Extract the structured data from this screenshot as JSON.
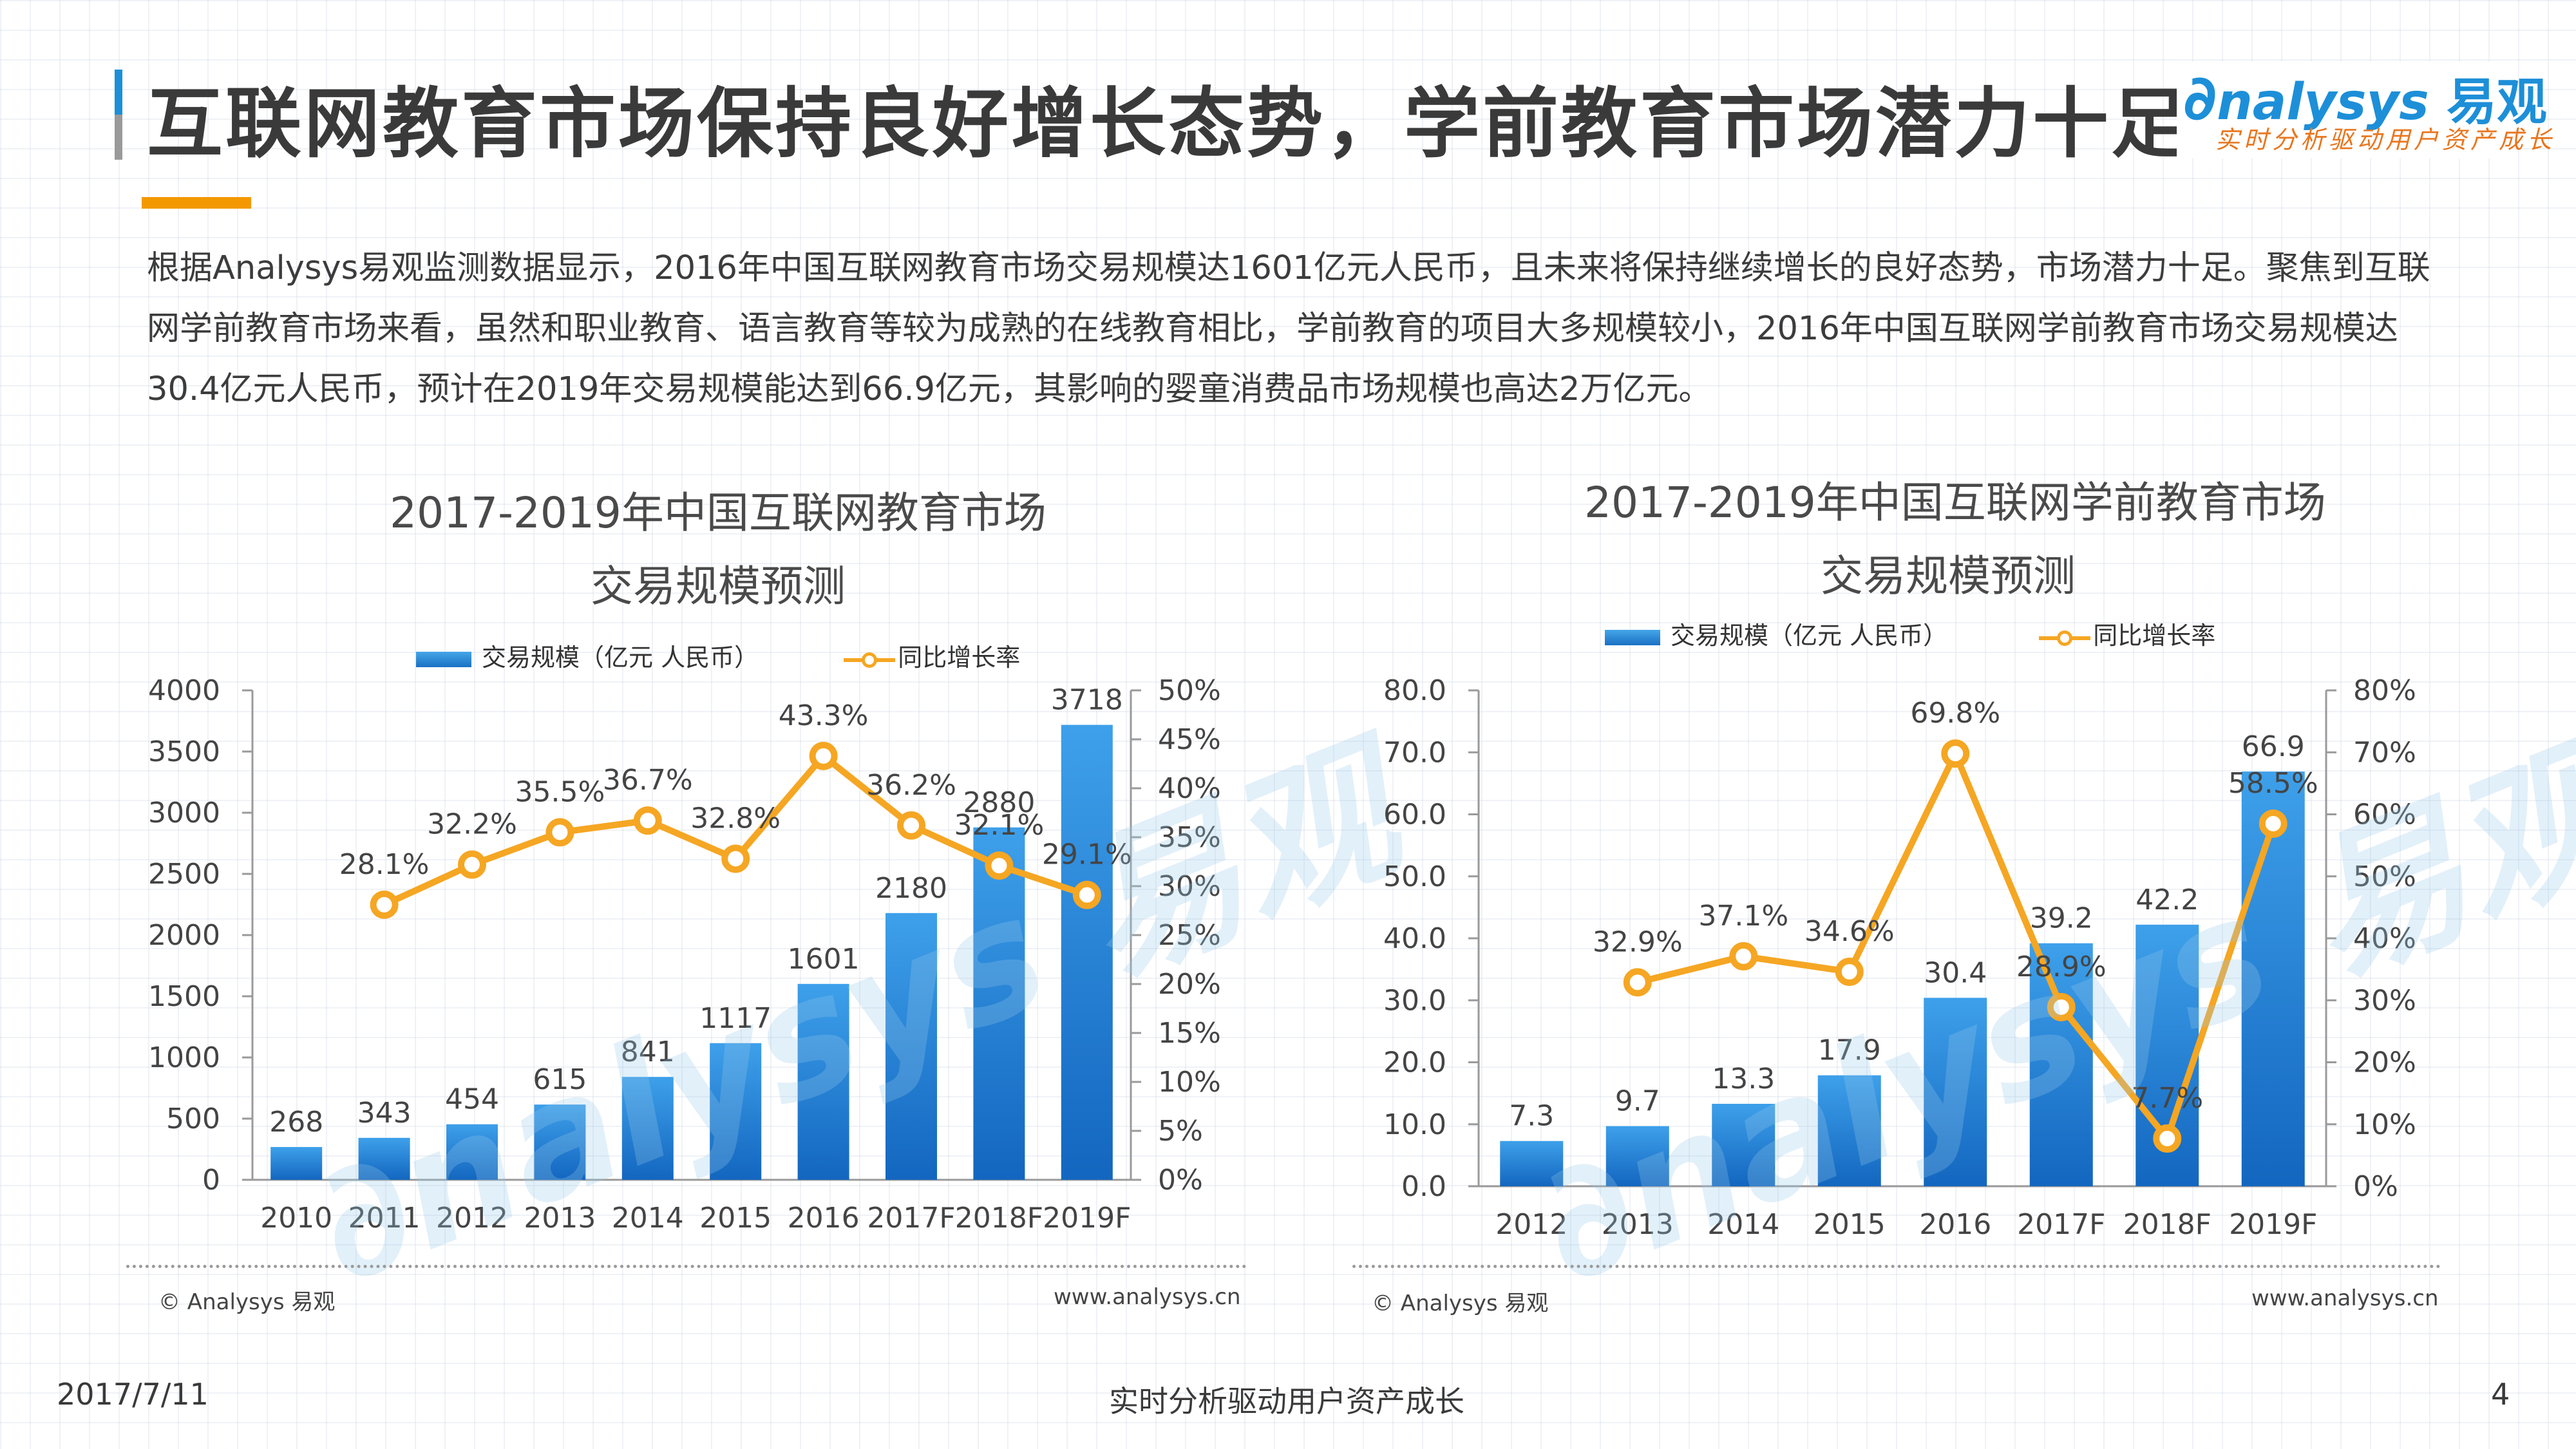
{
  "header": {
    "title": "互联网教育市场保持良好增长态势，学前教育市场潜力十足",
    "logo_text": "nalysys",
    "logo_cn": "易观",
    "logo_tagline": "实时分析驱动用户资产成长"
  },
  "intro": {
    "text": "根据Analysys易观监测数据显示，2016年中国互联网教育市场交易规模达1601亿元人民币，且未来将保持继续增长的良好态势，市场潜力十足。聚焦到互联网学前教育市场来看，虽然和职业教育、语言教育等较为成熟的在线教育相比，学前教育的项目大多规模较小，2016年中国互联网学前教育市场交易规模达30.4亿元人民币，预计在2019年交易规模能达到66.9亿元，其影响的婴童消费品市场规模也高达2万亿元。"
  },
  "colors": {
    "bar": "#1a7fd4",
    "line": "#f5a623",
    "accent": "#1d8fd8",
    "orange": "#f39800"
  },
  "chart_data": [
    {
      "type": "bar",
      "title_line1": "2017-2019年中国互联网教育市场",
      "title_line2": "交易规模预测",
      "legend_bar": "交易规模（亿元 人民币）",
      "legend_line": "同比增长率",
      "categories": [
        "2010",
        "2011",
        "2012",
        "2013",
        "2014",
        "2015",
        "2016",
        "2017F",
        "2018F",
        "2019F"
      ],
      "series": [
        {
          "name": "交易规模（亿元 人民币）",
          "kind": "bar",
          "axis": "left",
          "values": [
            268,
            343,
            454,
            615,
            841,
            1117,
            1601,
            2180,
            2880,
            3718
          ],
          "labels": [
            "268",
            "343",
            "454",
            "615",
            "841",
            "1117",
            "1601",
            "2180",
            "2880",
            "3718"
          ]
        },
        {
          "name": "同比增长率",
          "kind": "line",
          "axis": "right",
          "values": [
            null,
            28.1,
            32.2,
            35.5,
            36.7,
            32.8,
            43.3,
            36.2,
            32.1,
            29.1
          ],
          "labels": [
            "",
            "28.1%",
            "32.2%",
            "35.5%",
            "36.7%",
            "32.8%",
            "43.3%",
            "36.2%",
            "32.1%",
            "29.1%"
          ]
        }
      ],
      "left_axis": {
        "min": 0,
        "max": 4000,
        "ticks": [
          "0",
          "500",
          "1000",
          "1500",
          "2000",
          "2500",
          "3000",
          "3500",
          "4000"
        ]
      },
      "right_axis": {
        "min": 0,
        "max": 50,
        "ticks": [
          "0%",
          "5%",
          "10%",
          "15%",
          "20%",
          "25%",
          "30%",
          "35%",
          "40%",
          "45%",
          "50%"
        ]
      },
      "source_left": "© Analysys 易观",
      "source_right": "www.analysys.cn"
    },
    {
      "type": "bar",
      "title_line1": "2017-2019年中国互联网学前教育市场",
      "title_line2": "交易规模预测",
      "legend_bar": "交易规模（亿元 人民币）",
      "legend_line": "同比增长率",
      "categories": [
        "2012",
        "2013",
        "2014",
        "2015",
        "2016",
        "2017F",
        "2018F",
        "2019F"
      ],
      "series": [
        {
          "name": "交易规模（亿元 人民币）",
          "kind": "bar",
          "axis": "left",
          "values": [
            7.3,
            9.7,
            13.3,
            17.9,
            30.4,
            39.2,
            42.2,
            66.9
          ],
          "labels": [
            "7.3",
            "9.7",
            "13.3",
            "17.9",
            "30.4",
            "39.2",
            "42.2",
            "66.9"
          ]
        },
        {
          "name": "同比增长率",
          "kind": "line",
          "axis": "right",
          "values": [
            null,
            32.9,
            37.1,
            34.6,
            69.8,
            28.9,
            7.7,
            58.5
          ],
          "labels": [
            "",
            "32.9%",
            "37.1%",
            "34.6%",
            "69.8%",
            "28.9%",
            "7.7%",
            "58.5%"
          ]
        }
      ],
      "left_axis": {
        "min": 0,
        "max": 80,
        "ticks": [
          "0.0",
          "10.0",
          "20.0",
          "30.0",
          "40.0",
          "50.0",
          "60.0",
          "70.0",
          "80.0"
        ]
      },
      "right_axis": {
        "min": 0,
        "max": 80,
        "ticks": [
          "0%",
          "10%",
          "20%",
          "30%",
          "40%",
          "50%",
          "60%",
          "70%",
          "80%"
        ]
      },
      "source_left": "© Analysys 易观",
      "source_right": "www.analysys.cn"
    }
  ],
  "footer": {
    "date": "2017/7/11",
    "slogan": "实时分析驱动用户资产成长",
    "page": "4"
  }
}
